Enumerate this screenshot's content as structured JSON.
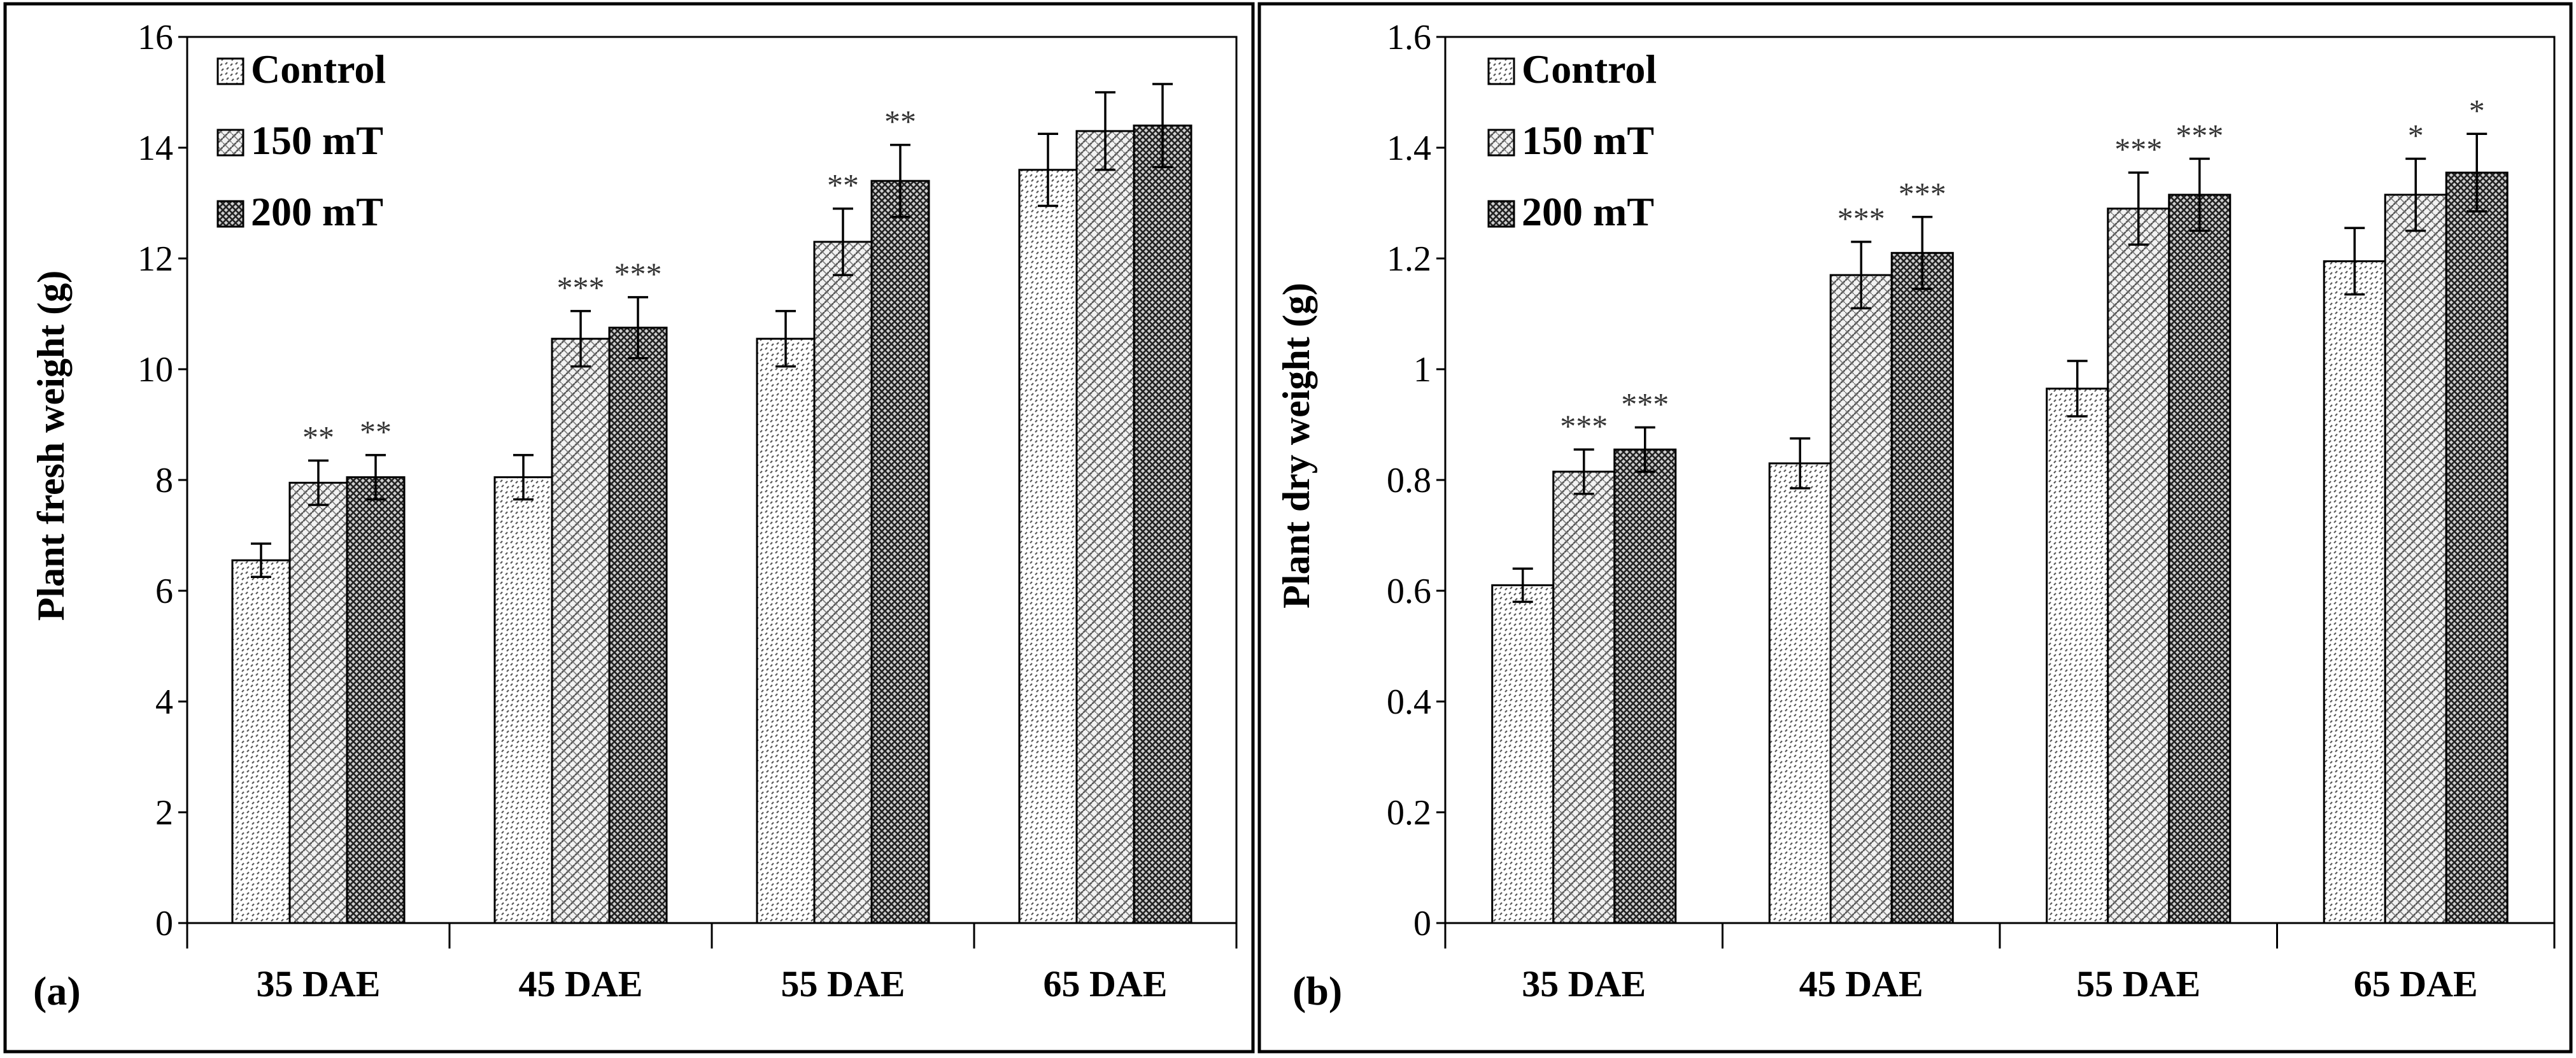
{
  "chart_data": [
    {
      "type": "bar",
      "panel_label": "(a)",
      "title": "",
      "xlabel": "",
      "ylabel": "Plant fresh weight (g)",
      "categories": [
        "35 DAE",
        "45 DAE",
        "55 DAE",
        "65 DAE"
      ],
      "ylim": [
        0,
        16
      ],
      "yticks": [
        0,
        2,
        4,
        6,
        8,
        10,
        12,
        14,
        16
      ],
      "grid": false,
      "legend_position": "top-left",
      "series": [
        {
          "name": "Control",
          "values": [
            6.55,
            8.05,
            10.55,
            13.6
          ],
          "errors": [
            0.3,
            0.4,
            0.5,
            0.65
          ],
          "annotations": [
            "",
            "",
            "",
            ""
          ]
        },
        {
          "name": "150 mT",
          "values": [
            7.95,
            10.55,
            12.3,
            14.3
          ],
          "errors": [
            0.4,
            0.5,
            0.6,
            0.7
          ],
          "annotations": [
            "**",
            "***",
            "**",
            ""
          ]
        },
        {
          "name": "200 mT",
          "values": [
            8.05,
            10.75,
            13.4,
            14.4
          ],
          "errors": [
            0.4,
            0.55,
            0.65,
            0.75
          ],
          "annotations": [
            "**",
            "***",
            "**",
            ""
          ]
        }
      ]
    },
    {
      "type": "bar",
      "panel_label": "(b)",
      "title": "",
      "xlabel": "",
      "ylabel": "Plant dry weight (g)",
      "categories": [
        "35 DAE",
        "45 DAE",
        "55 DAE",
        "65 DAE"
      ],
      "ylim": [
        0,
        1.6
      ],
      "yticks": [
        0,
        0.2,
        0.4,
        0.6,
        0.8,
        1,
        1.2,
        1.4,
        1.6
      ],
      "grid": false,
      "legend_position": "top-left",
      "series": [
        {
          "name": "Control",
          "values": [
            0.61,
            0.83,
            0.965,
            1.195
          ],
          "errors": [
            0.03,
            0.045,
            0.05,
            0.06
          ],
          "annotations": [
            "",
            "",
            "",
            ""
          ]
        },
        {
          "name": "150 mT",
          "values": [
            0.815,
            1.17,
            1.29,
            1.315
          ],
          "errors": [
            0.04,
            0.06,
            0.065,
            0.065
          ],
          "annotations": [
            "***",
            "***",
            "***",
            "*"
          ]
        },
        {
          "name": "200 mT",
          "values": [
            0.855,
            1.21,
            1.315,
            1.355
          ],
          "errors": [
            0.04,
            0.065,
            0.065,
            0.07
          ],
          "annotations": [
            "***",
            "***",
            "***",
            "*"
          ]
        }
      ]
    }
  ]
}
